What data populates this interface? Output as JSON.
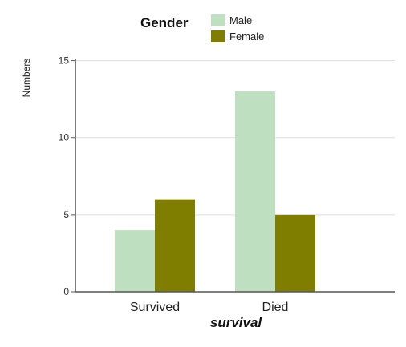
{
  "chart_data": {
    "type": "bar",
    "categories": [
      "Survived",
      "Died"
    ],
    "series": [
      {
        "name": "Male",
        "values": [
          4,
          13
        ],
        "color": "#bfdfc1"
      },
      {
        "name": "Female",
        "values": [
          6,
          5
        ],
        "color": "#807e00"
      }
    ],
    "xlabel": "survival",
    "ylabel": "Numbers",
    "legend_title": "Gender",
    "ylim": [
      0,
      15.5
    ],
    "yticks": [
      0,
      5,
      10,
      15
    ],
    "ytick_labels": [
      "0",
      "5",
      "10",
      "15"
    ],
    "grid": true,
    "legend_position": "top"
  }
}
